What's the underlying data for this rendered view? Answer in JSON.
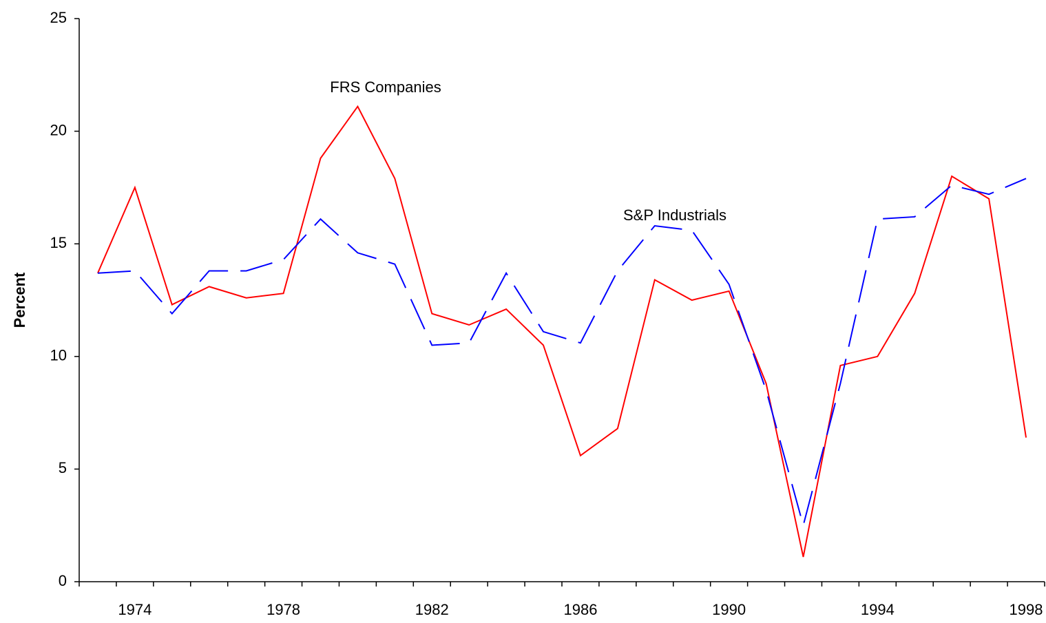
{
  "chart_data": {
    "type": "line",
    "y_label": "Percent",
    "annotations": [
      "FRS Companies",
      "S&P Industrials"
    ],
    "categories": [
      null,
      "1974",
      null,
      null,
      null,
      "1978",
      null,
      null,
      null,
      "1982",
      null,
      null,
      null,
      "1986",
      null,
      null,
      null,
      "1990",
      null,
      null,
      null,
      "1994",
      null,
      null,
      null,
      "1998"
    ],
    "series": [
      {
        "name": "FRS Companies",
        "color": "#ff0000",
        "dash": false,
        "values": [
          13.7,
          17.5,
          12.3,
          13.1,
          12.6,
          12.8,
          18.8,
          21.1,
          17.9,
          11.9,
          11.4,
          12.1,
          10.5,
          5.6,
          6.8,
          13.4,
          12.5,
          12.9,
          8.8,
          1.1,
          9.6,
          10.0,
          12.8,
          18.0,
          17.0,
          6.4
        ]
      },
      {
        "name": "S&P Industrials",
        "color": "#0000ff",
        "dash": true,
        "values": [
          13.7,
          13.8,
          11.9,
          13.8,
          13.8,
          14.3,
          16.1,
          14.6,
          14.1,
          10.5,
          10.6,
          13.7,
          11.1,
          10.6,
          13.8,
          15.8,
          15.6,
          13.2,
          8.5,
          2.5,
          8.8,
          16.1,
          16.2,
          17.6,
          17.2,
          17.9
        ]
      }
    ],
    "ylim": [
      0,
      25
    ],
    "yticks": [
      0,
      5,
      10,
      15,
      20,
      25
    ],
    "grid": false
  }
}
